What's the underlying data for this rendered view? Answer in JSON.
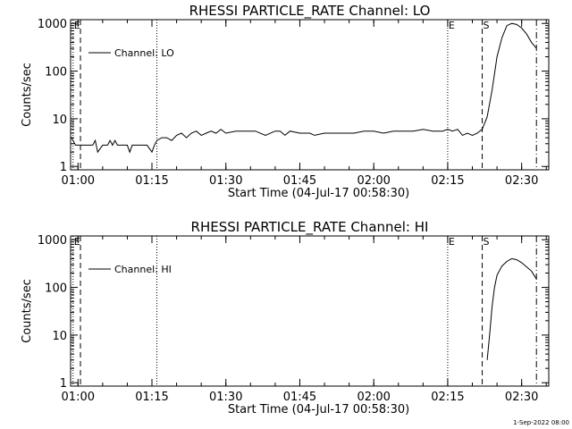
{
  "footer": {
    "timestamp": "1-Sep-2022 08:00"
  },
  "colors": {
    "background": "#ffffff",
    "foreground": "#000000"
  },
  "chart_data": [
    {
      "type": "line",
      "title": "RHESSI PARTICLE_RATE Channel: LO",
      "xlabel": "Start Time (04-Jul-17 00:58:30)",
      "ylabel": "Counts/sec",
      "yscale": "log",
      "ylim": [
        0.85,
        1200
      ],
      "xlim": [
        "00:58:30",
        "02:35:30"
      ],
      "x_ticks": [
        "01:00",
        "01:15",
        "01:30",
        "01:45",
        "02:00",
        "02:15",
        "02:30"
      ],
      "y_ticks": [
        "1",
        "10",
        "100",
        "1000"
      ],
      "legend": {
        "entries": [
          "Channel: LO"
        ],
        "placement": "top-left"
      },
      "markers": [
        {
          "label": "E",
          "time": "00:59:00",
          "style": "dotted"
        },
        {
          "label": "",
          "time": "01:00:30",
          "style": "dashed"
        },
        {
          "label": "",
          "time": "01:16:00",
          "style": "dotted"
        },
        {
          "label": "E",
          "time": "02:15:00",
          "style": "dotted"
        },
        {
          "label": "S",
          "time": "02:22:00",
          "style": "dashed"
        },
        {
          "label": "",
          "time": "02:33:00",
          "style": "dash-dot"
        }
      ],
      "series": [
        {
          "name": "Channel: LO",
          "x": [
            "00:58:40",
            "00:59:00",
            "00:59:30",
            "01:00:00",
            "01:00:30",
            "01:01:00",
            "01:02:00",
            "01:03:00",
            "01:03:30",
            "01:04:00",
            "01:05:00",
            "01:06:00",
            "01:06:30",
            "01:07:00",
            "01:07:30",
            "01:08:00",
            "01:09:00",
            "01:10:00",
            "01:10:30",
            "01:11:00",
            "01:12:00",
            "01:13:00",
            "01:14:00",
            "01:15:00",
            "01:15:30",
            "01:16:00",
            "01:17:00",
            "01:18:00",
            "01:19:00",
            "01:20:00",
            "01:21:00",
            "01:22:00",
            "01:23:00",
            "01:24:00",
            "01:25:00",
            "01:26:00",
            "01:27:00",
            "01:28:00",
            "01:29:00",
            "01:30:00",
            "01:32:00",
            "01:34:00",
            "01:36:00",
            "01:38:00",
            "01:40:00",
            "01:41:00",
            "01:42:00",
            "01:43:00",
            "01:45:00",
            "01:47:00",
            "01:48:00",
            "01:50:00",
            "01:52:00",
            "01:54:00",
            "01:56:00",
            "01:58:00",
            "02:00:00",
            "02:02:00",
            "02:04:00",
            "02:06:00",
            "02:08:00",
            "02:10:00",
            "02:12:00",
            "02:14:00",
            "02:15:00",
            "02:16:00",
            "02:17:00",
            "02:18:00",
            "02:19:00",
            "02:20:00",
            "02:21:00",
            "02:22:00",
            "02:23:00",
            "02:24:00",
            "02:25:00",
            "02:26:00",
            "02:27:00",
            "02:28:00",
            "02:29:00",
            "02:30:00",
            "02:31:00",
            "02:32:00",
            "02:33:00"
          ],
          "y": [
            4,
            3.5,
            2.8,
            2.8,
            2.8,
            2.8,
            2.8,
            2.8,
            3.5,
            2.0,
            2.8,
            2.8,
            3.5,
            2.8,
            3.5,
            2.8,
            2.8,
            2.8,
            2.0,
            2.8,
            2.8,
            2.8,
            2.8,
            2.0,
            2.8,
            3.5,
            4,
            4,
            3.5,
            4.5,
            5,
            4,
            5,
            5.5,
            4.5,
            5,
            5.5,
            5,
            6,
            5,
            5.5,
            5.5,
            5.5,
            4.5,
            5.5,
            5.5,
            4.5,
            5.5,
            5,
            5,
            4.5,
            5,
            5,
            5,
            5,
            5.5,
            5.5,
            5,
            5.5,
            5.5,
            5.5,
            6,
            5.5,
            5.5,
            6,
            5.5,
            6,
            4.5,
            5,
            4.5,
            5,
            6,
            11,
            40,
            200,
            500,
            900,
            1000,
            950,
            800,
            600,
            400,
            300
          ]
        }
      ]
    },
    {
      "type": "line",
      "title": "RHESSI PARTICLE_RATE Channel: HI",
      "xlabel": "Start Time (04-Jul-17 00:58:30)",
      "ylabel": "Counts/sec",
      "yscale": "log",
      "ylim": [
        0.85,
        1200
      ],
      "xlim": [
        "00:58:30",
        "02:35:30"
      ],
      "x_ticks": [
        "01:00",
        "01:15",
        "01:30",
        "01:45",
        "02:00",
        "02:15",
        "02:30"
      ],
      "y_ticks": [
        "1",
        "10",
        "100",
        "1000"
      ],
      "legend": {
        "entries": [
          "Channel: HI"
        ],
        "placement": "top-left"
      },
      "markers": [
        {
          "label": "E",
          "time": "00:59:00",
          "style": "dotted"
        },
        {
          "label": "",
          "time": "01:00:30",
          "style": "dashed"
        },
        {
          "label": "",
          "time": "01:16:00",
          "style": "dotted"
        },
        {
          "label": "E",
          "time": "02:15:00",
          "style": "dotted"
        },
        {
          "label": "S",
          "time": "02:22:00",
          "style": "dashed"
        },
        {
          "label": "",
          "time": "02:33:00",
          "style": "dash-dot"
        }
      ],
      "series": [
        {
          "name": "Channel: HI",
          "x": [
            "02:23:00",
            "02:23:30",
            "02:24:00",
            "02:24:30",
            "02:25:00",
            "02:26:00",
            "02:27:00",
            "02:28:00",
            "02:29:00",
            "02:30:00",
            "02:31:00",
            "02:32:00",
            "02:33:00"
          ],
          "y": [
            3,
            10,
            40,
            100,
            180,
            280,
            350,
            400,
            380,
            330,
            270,
            220,
            150
          ]
        }
      ]
    }
  ]
}
